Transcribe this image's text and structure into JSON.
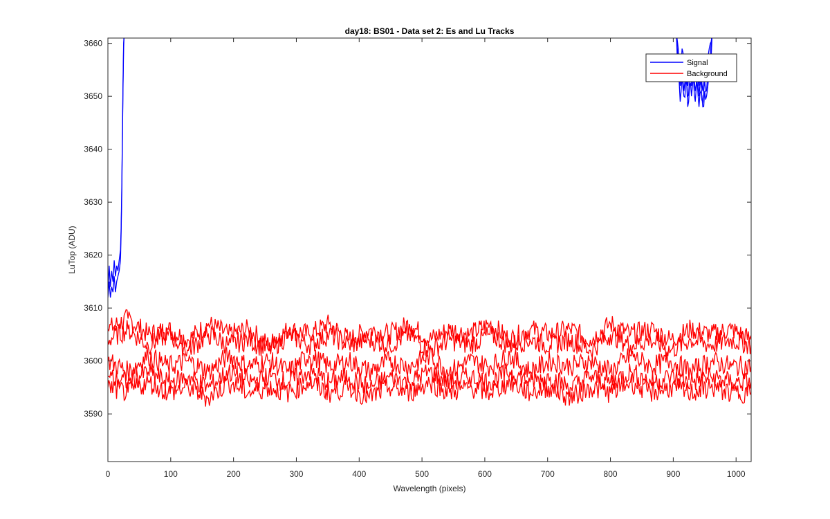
{
  "chart_data": {
    "type": "line",
    "title": "day18: BS01 - Data set 2: Es and Lu Tracks",
    "xlabel": "Wavelength (pixels)",
    "ylabel": "LuTop (ADU)",
    "xlim": [
      0,
      1024
    ],
    "ylim": [
      3581,
      3661
    ],
    "xticks": [
      0,
      100,
      200,
      300,
      400,
      500,
      600,
      700,
      800,
      900,
      1000
    ],
    "yticks": [
      3590,
      3600,
      3610,
      3620,
      3630,
      3640,
      3650,
      3660
    ],
    "grid": false,
    "legend": {
      "placement": "top-right",
      "entries": [
        "Signal",
        "Background"
      ]
    },
    "series": [
      {
        "name": "Signal",
        "color": "#0000ff",
        "traces": [
          {
            "x": [
              0,
              2,
              4,
              6,
              8,
              10,
              12,
              14,
              16,
              18,
              20,
              21,
              22,
              23,
              24,
              25,
              26
            ],
            "y": [
              3613,
              3618,
              3614,
              3617,
              3615,
              3619,
              3616,
              3618,
              3617,
              3619,
              3621,
              3625,
              3632,
              3642,
              3652,
              3660,
              3662
            ]
          },
          {
            "x": [
              0,
              2,
              4,
              6,
              8,
              10,
              12,
              14,
              16,
              18,
              20,
              21,
              22,
              23,
              24,
              25,
              26
            ],
            "y": [
              3612,
              3615,
              3612,
              3614,
              3613,
              3616,
              3613,
              3615,
              3616,
              3617,
              3619,
              3624,
              3631,
              3641,
              3651,
              3659,
              3662
            ]
          },
          {
            "x": [
              905,
              908,
              911,
              914,
              917,
              920,
              923,
              926,
              929,
              932,
              935,
              938,
              941,
              944,
              947,
              950,
              953,
              956,
              959,
              962
            ],
            "y": [
              3662,
              3656,
              3652,
              3657,
              3651,
              3655,
              3650,
              3654,
              3652,
              3656,
              3651,
              3655,
              3650,
              3653,
              3649,
              3653,
              3651,
              3655,
              3658,
              3662
            ]
          },
          {
            "x": [
              905,
              908,
              911,
              914,
              917,
              920,
              923,
              926,
              929,
              932,
              935,
              938,
              941,
              944,
              947,
              950,
              953,
              956,
              959,
              962
            ],
            "y": [
              3662,
              3659,
              3655,
              3659,
              3654,
              3657,
              3652,
              3656,
              3654,
              3658,
              3653,
              3657,
              3652,
              3656,
              3651,
              3655,
              3654,
              3658,
              3660,
              3662
            ]
          },
          {
            "x": [
              905,
              908,
              911,
              914,
              917,
              920,
              923,
              926,
              929,
              932,
              935,
              938,
              941,
              944,
              947,
              950,
              953,
              956,
              959,
              962
            ],
            "y": [
              3662,
              3654,
              3649,
              3654,
              3650,
              3653,
              3648,
              3652,
              3650,
              3654,
              3649,
              3653,
              3648,
              3651,
              3648,
              3651,
              3650,
              3653,
              3657,
              3662
            ]
          }
        ]
      },
      {
        "name": "Background",
        "color": "#ff0000",
        "traces": [
          {
            "x": [
              0,
              32,
              64,
              96,
              128,
              160,
              192,
              224,
              256,
              288,
              320,
              352,
              384,
              416,
              448,
              480,
              512,
              544,
              576,
              608,
              640,
              672,
              704,
              736,
              768,
              800,
              832,
              864,
              896,
              928,
              960,
              992,
              1024
            ],
            "y": [
              3606,
              3608,
              3605,
              3606,
              3604,
              3607,
              3605,
              3606,
              3603,
              3606,
              3605,
              3607,
              3604,
              3606,
              3605,
              3607,
              3604,
              3606,
              3605,
              3607,
              3604,
              3606,
              3605,
              3606,
              3604,
              3607,
              3605,
              3606,
              3604,
              3606,
              3605,
              3606,
              3604
            ]
          },
          {
            "x": [
              0,
              32,
              64,
              96,
              128,
              160,
              192,
              224,
              256,
              288,
              320,
              352,
              384,
              416,
              448,
              480,
              512,
              544,
              576,
              608,
              640,
              672,
              704,
              736,
              768,
              800,
              832,
              864,
              896,
              928,
              960,
              992,
              1024
            ],
            "y": [
              3604,
              3606,
              3603,
              3605,
              3602,
              3605,
              3603,
              3604,
              3602,
              3605,
              3603,
              3605,
              3603,
              3604,
              3603,
              3605,
              3602,
              3604,
              3603,
              3605,
              3603,
              3604,
              3603,
              3604,
              3602,
              3605,
              3603,
              3604,
              3602,
              3604,
              3603,
              3604,
              3603
            ]
          },
          {
            "x": [
              0,
              32,
              64,
              96,
              128,
              160,
              192,
              224,
              256,
              288,
              320,
              352,
              384,
              416,
              448,
              480,
              512,
              544,
              576,
              608,
              640,
              672,
              704,
              736,
              768,
              800,
              832,
              864,
              896,
              928,
              960,
              992,
              1024
            ],
            "y": [
              3600,
              3598,
              3601,
              3599,
              3600,
              3598,
              3601,
              3599,
              3600,
              3598,
              3601,
              3599,
              3600,
              3598,
              3600,
              3599,
              3601,
              3598,
              3600,
              3599,
              3601,
              3598,
              3600,
              3599,
              3600,
              3598,
              3601,
              3599,
              3600,
              3598,
              3600,
              3599,
              3599
            ]
          },
          {
            "x": [
              0,
              32,
              64,
              96,
              128,
              160,
              192,
              224,
              256,
              288,
              320,
              352,
              384,
              416,
              448,
              480,
              512,
              544,
              576,
              608,
              640,
              672,
              704,
              736,
              768,
              800,
              832,
              864,
              896,
              928,
              960,
              992,
              1024
            ],
            "y": [
              3597,
              3596,
              3598,
              3596,
              3597,
              3595,
              3598,
              3596,
              3597,
              3596,
              3598,
              3596,
              3597,
              3595,
              3597,
              3596,
              3598,
              3596,
              3597,
              3596,
              3598,
              3596,
              3597,
              3595,
              3597,
              3596,
              3598,
              3596,
              3597,
              3596,
              3597,
              3596,
              3596
            ]
          },
          {
            "x": [
              0,
              32,
              64,
              96,
              128,
              160,
              192,
              224,
              256,
              288,
              320,
              352,
              384,
              416,
              448,
              480,
              512,
              544,
              576,
              608,
              640,
              672,
              704,
              736,
              768,
              800,
              832,
              864,
              896,
              928,
              960,
              992,
              1024
            ],
            "y": [
              3595,
              3594,
              3596,
              3594,
              3595,
              3593,
              3596,
              3594,
              3595,
              3594,
              3596,
              3594,
              3595,
              3593,
              3595,
              3594,
              3596,
              3594,
              3595,
              3594,
              3596,
              3594,
              3595,
              3593,
              3595,
              3594,
              3596,
              3594,
              3595,
              3594,
              3595,
              3594,
              3594
            ]
          }
        ]
      }
    ]
  }
}
